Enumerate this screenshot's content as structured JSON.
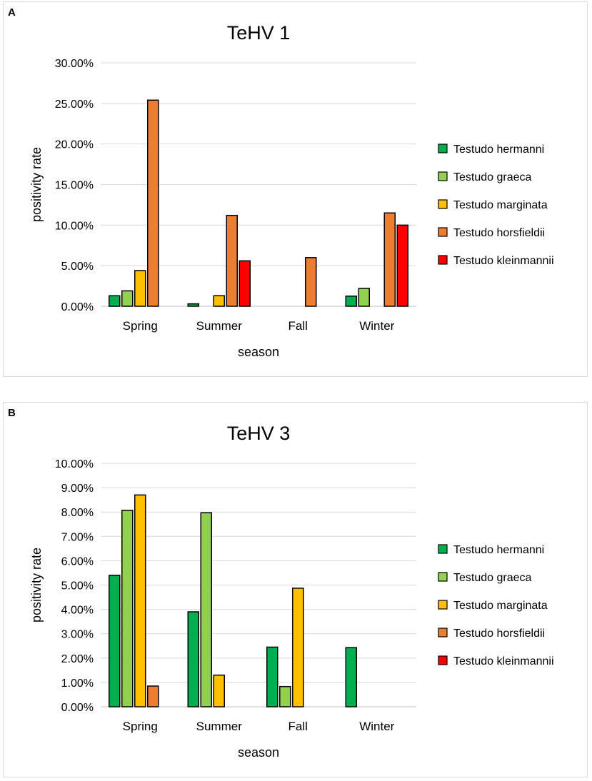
{
  "chart_data": [
    {
      "type": "bar",
      "panel": "A",
      "title": "TeHV 1",
      "xlabel": "season",
      "ylabel": "positivity rate",
      "ylim": [
        0,
        30
      ],
      "yticks": [
        "0.00%",
        "5.00%",
        "10.00%",
        "15.00%",
        "20.00%",
        "25.00%",
        "30.00%"
      ],
      "categories": [
        "Spring",
        "Summer",
        "Fall",
        "Winter"
      ],
      "legend_position": "right",
      "grid": true,
      "series": [
        {
          "name": "Testudo hermanni",
          "color": "#00b050",
          "values": [
            1.3,
            0.3,
            0,
            1.25
          ]
        },
        {
          "name": "Testudo graeca",
          "color": "#92d050",
          "values": [
            1.9,
            0,
            0,
            2.2
          ]
        },
        {
          "name": "Testudo marginata",
          "color": "#ffc000",
          "values": [
            4.4,
            1.3,
            0,
            0
          ]
        },
        {
          "name": "Testudo horsfieldii",
          "color": "#ed7d31",
          "values": [
            25.4,
            11.2,
            6.0,
            11.5
          ]
        },
        {
          "name": "Testudo kleinmannii",
          "color": "#ff0000",
          "values": [
            0,
            5.6,
            0,
            10.0
          ]
        }
      ]
    },
    {
      "type": "bar",
      "panel": "B",
      "title": "TeHV 3",
      "xlabel": "season",
      "ylabel": "positivity rate",
      "ylim": [
        0,
        10
      ],
      "yticks": [
        "0.00%",
        "1.00%",
        "2.00%",
        "3.00%",
        "4.00%",
        "5.00%",
        "6.00%",
        "7.00%",
        "8.00%",
        "9.00%",
        "10.00%"
      ],
      "categories": [
        "Spring",
        "Summer",
        "Fall",
        "Winter"
      ],
      "legend_position": "right",
      "grid": true,
      "series": [
        {
          "name": "Testudo hermanni",
          "color": "#00b050",
          "values": [
            5.4,
            3.9,
            2.45,
            2.43
          ]
        },
        {
          "name": "Testudo graeca",
          "color": "#92d050",
          "values": [
            8.07,
            7.97,
            0.83,
            0
          ]
        },
        {
          "name": "Testudo marginata",
          "color": "#ffc000",
          "values": [
            8.7,
            1.3,
            4.87,
            0
          ]
        },
        {
          "name": "Testudo horsfieldii",
          "color": "#ed7d31",
          "values": [
            0.85,
            0,
            0,
            0
          ]
        },
        {
          "name": "Testudo kleinmannii",
          "color": "#ff0000",
          "values": [
            0,
            0,
            0,
            0
          ]
        }
      ]
    }
  ]
}
